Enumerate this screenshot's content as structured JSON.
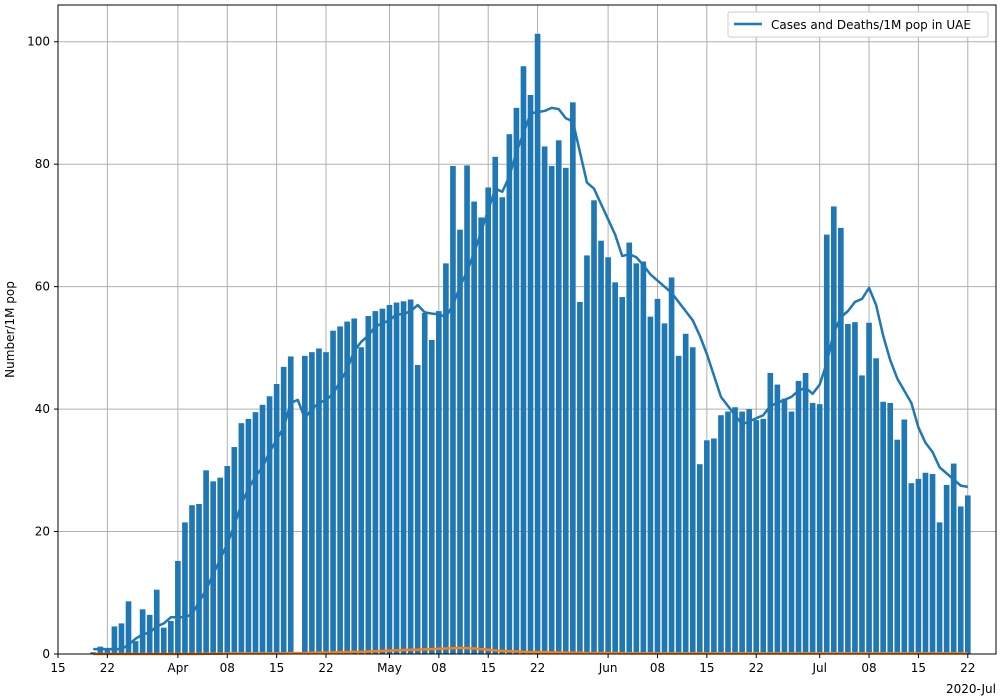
{
  "chart_data": {
    "type": "bar",
    "ylabel": "Number/1M pop",
    "xlabel": "",
    "x_offset_label": "2020-Jul",
    "ylim": [
      0,
      106
    ],
    "grid": true,
    "legend_position": "top-right",
    "legend": [
      {
        "label": "Cases and Deaths/1M pop in UAE",
        "color": "#1f77b4"
      }
    ],
    "colors": {
      "cases": "#1f77b4",
      "deaths": "#ff7f0e",
      "grid": "#b0b0b0"
    },
    "xlim": [
      "2020-03-15",
      "2020-07-26"
    ],
    "x_ticks": [
      {
        "date": "2020-03-15",
        "label": "15"
      },
      {
        "date": "2020-03-22",
        "label": "22"
      },
      {
        "date": "2020-04-01",
        "label": "Apr"
      },
      {
        "date": "2020-04-08",
        "label": "08"
      },
      {
        "date": "2020-04-15",
        "label": "15"
      },
      {
        "date": "2020-04-22",
        "label": "22"
      },
      {
        "date": "2020-05-01",
        "label": "May"
      },
      {
        "date": "2020-05-08",
        "label": "08"
      },
      {
        "date": "2020-05-15",
        "label": "15"
      },
      {
        "date": "2020-05-22",
        "label": "22"
      },
      {
        "date": "2020-06-01",
        "label": "Jun"
      },
      {
        "date": "2020-06-08",
        "label": "08"
      },
      {
        "date": "2020-06-15",
        "label": "15"
      },
      {
        "date": "2020-06-22",
        "label": "22"
      },
      {
        "date": "2020-07-01",
        "label": "Jul"
      },
      {
        "date": "2020-07-08",
        "label": "08"
      },
      {
        "date": "2020-07-15",
        "label": "15"
      },
      {
        "date": "2020-07-22",
        "label": "22"
      }
    ],
    "y_ticks": [
      0,
      20,
      40,
      60,
      80,
      100
    ],
    "bars": {
      "first_date": "2020-03-20",
      "values": [
        0.3,
        1.2,
        0.8,
        4.5,
        5.0,
        8.6,
        2.1,
        7.3,
        6.4,
        10.5,
        4.3,
        5.4,
        15.2,
        21.5,
        24.3,
        24.5,
        30.0,
        28.2,
        28.8,
        30.7,
        33.8,
        37.7,
        38.4,
        39.5,
        40.7,
        42.1,
        44.1,
        46.9,
        48.6,
        0.0,
        48.7,
        49.3,
        49.9,
        49.3,
        52.8,
        53.5,
        54.3,
        54.8,
        50.1,
        55.2,
        56.0,
        56.4,
        57.0,
        57.4,
        57.6,
        57.9,
        47.2,
        55.7,
        51.3,
        56.0,
        63.8,
        79.7,
        69.3,
        79.8,
        73.9,
        71.3,
        76.2,
        81.2,
        74.6,
        84.9,
        89.2,
        96.0,
        91.3,
        101.3,
        82.9,
        79.7,
        83.9,
        79.4,
        90.1,
        57.5,
        65.1,
        74.1,
        67.5,
        64.8,
        60.7,
        58.3,
        67.2,
        63.8,
        64.1,
        55.1,
        58.0,
        54.0,
        61.5,
        48.7,
        52.3,
        50.1,
        31.0,
        34.9,
        35.2,
        39.0,
        39.6,
        40.3,
        39.6,
        40.0,
        38.2,
        38.4,
        45.9,
        44.0,
        41.7,
        39.6,
        44.6,
        45.9,
        41.0,
        40.8,
        68.5,
        73.1,
        69.6,
        53.9,
        54.2,
        45.5,
        54.1,
        48.3,
        41.2,
        41.0,
        35.0,
        38.3,
        27.9,
        28.6,
        29.6,
        29.4,
        21.5,
        27.6,
        31.1,
        24.1,
        25.9
      ]
    },
    "series": [
      {
        "name": "cases_rolling_avg",
        "color": "#1f77b4",
        "first_date": "2020-03-20",
        "values": [
          0.8,
          0.8,
          0.8,
          0.8,
          0.8,
          1.5,
          2.5,
          3.2,
          3.5,
          4.5,
          5.0,
          6.0,
          6.0,
          6.0,
          6.5,
          8.5,
          10.5,
          13.0,
          15.5,
          18.0,
          21.0,
          24.5,
          27.0,
          29.0,
          30.5,
          33.0,
          35.0,
          37.0,
          41.0,
          41.5,
          38.5,
          40.0,
          41.0,
          41.5,
          42.5,
          44.5,
          46.5,
          49.5,
          51.0,
          52.0,
          53.5,
          54.0,
          54.5,
          55.5,
          55.5,
          56.0,
          57.0,
          55.8,
          55.6,
          55.5,
          55.0,
          57.0,
          60.0,
          62.5,
          65.5,
          69.0,
          72.5,
          76.0,
          75.5,
          78.0,
          82.0,
          85.0,
          88.3,
          88.5,
          88.7,
          89.2,
          89.0,
          87.5,
          87.0,
          82.0,
          77.0,
          76.0,
          73.5,
          71.0,
          68.5,
          65.0,
          65.3,
          64.8,
          63.5,
          62.0,
          61.0,
          60.0,
          59.0,
          57.5,
          56.0,
          54.5,
          52.0,
          49.0,
          45.5,
          42.0,
          40.5,
          39.0,
          37.5,
          38.0,
          38.5,
          39.0,
          40.5,
          41.0,
          41.5,
          42.0,
          43.0,
          43.5,
          42.5,
          44.0,
          47.5,
          52.5,
          55.0,
          56.0,
          57.5,
          58.0,
          59.8,
          57.0,
          52.0,
          48.0,
          45.0,
          43.0,
          41.0,
          37.0,
          34.5,
          33.0,
          30.5,
          29.5,
          28.5,
          27.5,
          27.3
        ]
      },
      {
        "name": "deaths_rolling_avg",
        "color": "#ff7f0e",
        "first_date": "2020-03-20",
        "values": [
          0.0,
          0.0,
          0.0,
          0.0,
          0.0,
          0.0,
          0.0,
          0.0,
          0.0,
          0.0,
          0.0,
          0.0,
          0.0,
          0.0,
          0.0,
          0.0,
          0.05,
          0.05,
          0.05,
          0.1,
          0.1,
          0.1,
          0.1,
          0.1,
          0.1,
          0.1,
          0.1,
          0.1,
          0.15,
          0.15,
          0.15,
          0.2,
          0.2,
          0.2,
          0.25,
          0.3,
          0.3,
          0.35,
          0.35,
          0.4,
          0.45,
          0.5,
          0.55,
          0.6,
          0.65,
          0.7,
          0.7,
          0.75,
          0.8,
          0.85,
          0.9,
          0.95,
          1.0,
          0.95,
          0.9,
          0.8,
          0.7,
          0.6,
          0.5,
          0.45,
          0.4,
          0.35,
          0.3,
          0.3,
          0.3,
          0.25,
          0.25,
          0.2,
          0.2,
          0.2,
          0.15,
          0.15,
          0.15,
          0.15,
          0.15,
          0.1,
          0.1,
          0.1,
          0.1,
          0.1,
          0.1,
          0.1,
          0.1,
          0.1,
          0.1,
          0.1,
          0.1,
          0.1,
          0.1,
          0.1,
          0.1,
          0.1,
          0.1,
          0.1,
          0.1,
          0.1,
          0.1,
          0.1,
          0.1,
          0.1,
          0.1,
          0.1,
          0.1,
          0.1,
          0.1,
          0.1,
          0.1,
          0.1,
          0.1,
          0.1,
          0.1,
          0.1,
          0.1,
          0.1,
          0.1,
          0.1,
          0.1,
          0.1,
          0.1,
          0.1,
          0.1,
          0.1,
          0.1,
          0.1,
          0.1
        ]
      }
    ]
  }
}
